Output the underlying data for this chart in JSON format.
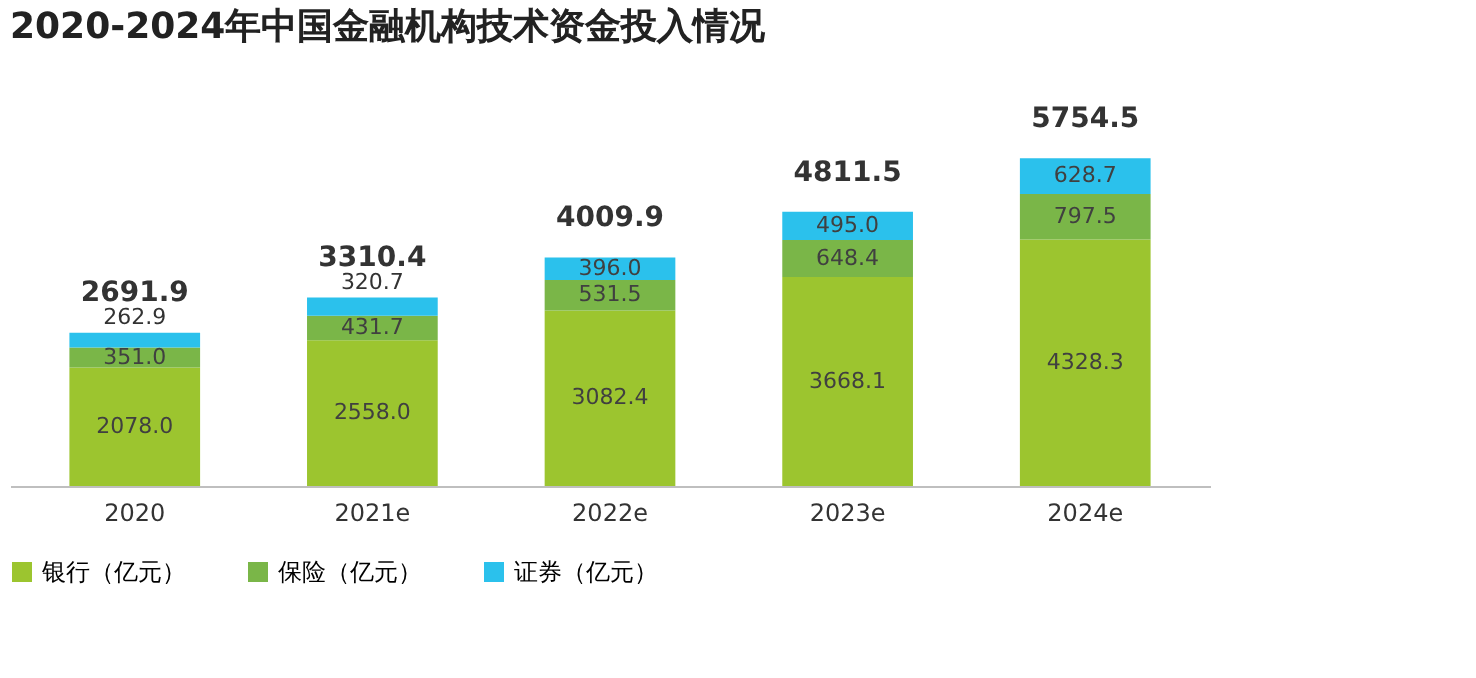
{
  "chart_data": {
    "type": "bar",
    "title": "2020-2024年中国金融机构技术资金投入情况",
    "categories": [
      "2020",
      "2021e",
      "2022e",
      "2023e",
      "2024e"
    ],
    "stacked": true,
    "legend": "bottom",
    "series": [
      {
        "name": "银行（亿元）",
        "color": "#9cc52f",
        "values": [
          2078.0,
          2558.0,
          3082.4,
          3668.1,
          4328.3
        ],
        "value_labels": [
          "2078.0",
          "2558.0",
          "3082.4",
          "3668.1",
          "4328.3"
        ]
      },
      {
        "name": "保险（亿元）",
        "color": "#7ab648",
        "values": [
          351.0,
          431.7,
          531.5,
          648.4,
          797.5
        ],
        "value_labels": [
          "351.0",
          "431.7",
          "531.5",
          "648.4",
          "797.5"
        ]
      },
      {
        "name": "证券（亿元）",
        "color": "#2bc1ec",
        "values": [
          262.9,
          320.7,
          396.0,
          495.0,
          628.7
        ],
        "value_labels": [
          "262.9",
          "320.7",
          "396.0",
          "495.0",
          "628.7"
        ]
      }
    ],
    "totals": [
      "2691.9",
      "3310.4",
      "4009.9",
      "4811.5",
      "5754.5"
    ]
  }
}
